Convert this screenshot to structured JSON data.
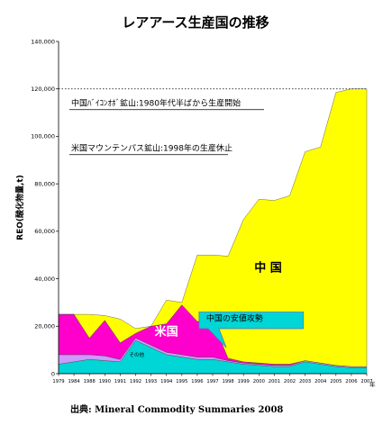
{
  "chart_data": {
    "type": "area",
    "stacked": true,
    "title": "レアアース生産国の推移",
    "ylabel": "REO(酸化物量,t)",
    "x_unit": "年",
    "ylim": [
      0,
      140000
    ],
    "yticks": [
      "0",
      "20,000",
      "40,000",
      "60,000",
      "80,000",
      "100,000",
      "120,000",
      "140,000"
    ],
    "ytick_values": [
      0,
      20000,
      40000,
      60000,
      80000,
      100000,
      120000,
      140000
    ],
    "x": [
      1979,
      1984,
      1988,
      1990,
      1991,
      1992,
      1993,
      1994,
      1995,
      1996,
      1997,
      1998,
      1999,
      2000,
      2001,
      2002,
      2003,
      2004,
      2005,
      2006,
      2007
    ],
    "xtick_labels": [
      "1979",
      "1984",
      "1988",
      "1990",
      "1991",
      "1992",
      "1993",
      "1994",
      "1995",
      "1996",
      "1997",
      "1998",
      "1999",
      "2000",
      "2001",
      "2002",
      "2003",
      "2004",
      "2005",
      "2006",
      "2007"
    ],
    "series": [
      {
        "name": "",
        "color": "#00d6d6",
        "values": [
          4000,
          5000,
          6000,
          5500,
          5000,
          14000,
          11000,
          8000,
          7000,
          6000,
          6000,
          5000,
          4000,
          3500,
          3000,
          3000,
          5000,
          4000,
          3000,
          2500,
          2500
        ]
      },
      {
        "name": "その他",
        "color": "#cc99ff",
        "values": [
          4000,
          3000,
          2000,
          2000,
          1000,
          1000,
          1000,
          1000,
          1000,
          1000,
          1000,
          500,
          500,
          500,
          500,
          500,
          500,
          500,
          500,
          500,
          500
        ]
      },
      {
        "name": "米国",
        "color": "#ff00cc",
        "values": [
          17000,
          17000,
          7000,
          15000,
          7000,
          2000,
          8000,
          12000,
          21000,
          15000,
          15000,
          1000,
          500,
          500,
          500,
          500,
          0,
          0,
          0,
          0,
          0
        ]
      },
      {
        "name": "中国",
        "color": "#ffff00",
        "values": [
          0,
          0,
          10000,
          2000,
          10000,
          2000,
          0,
          10000,
          1000,
          28000,
          28000,
          43000,
          60000,
          69000,
          69000,
          71000,
          88000,
          91000,
          115000,
          117000,
          117000
        ]
      }
    ],
    "annotations": {
      "baiyun": "中国ﾊﾞｲｺﾝｵﾎﾞ鉱山:1980年代半ばから生産開始",
      "mountain_pass": "米国マウンテンパス鉱山:1998年の生産休止",
      "china_label": "中 国",
      "us_label": "米国",
      "other_label": "その他",
      "callout": "中国の安値攻勢"
    },
    "reference_line_value": 120000,
    "source": "出典: Mineral Commodity Summaries 2008",
    "grid": false,
    "legend": "none"
  }
}
